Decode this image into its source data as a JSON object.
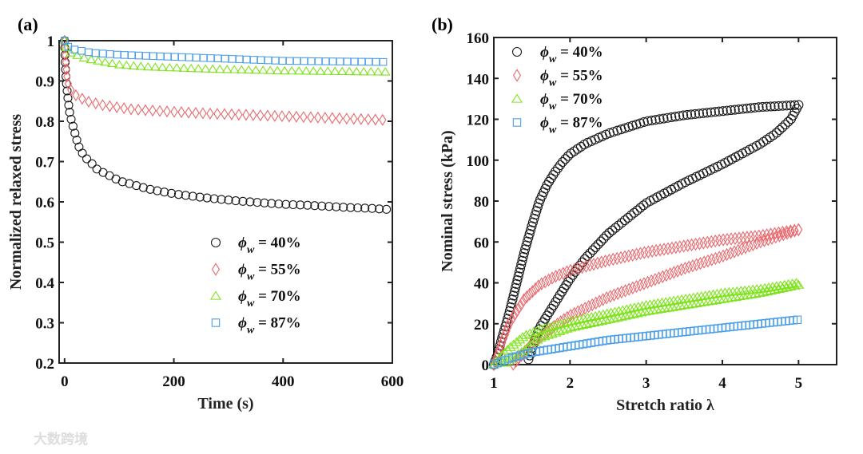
{
  "colors": {
    "40": "#1a1a1a",
    "55": "#e8686d",
    "70": "#7ee31c",
    "87": "#4a9ee8"
  },
  "watermark": "大数跨境",
  "chart_data": [
    {
      "type": "scatter",
      "panel_label": "(a)",
      "title": "",
      "xlabel": "Time (s)",
      "ylabel": "Normalized relaxed stress",
      "xlim": [
        -10,
        600
      ],
      "ylim": [
        0.2,
        1
      ],
      "xticks": [
        0,
        200,
        400,
        600
      ],
      "yticks": [
        0.2,
        0.3,
        0.4,
        0.5,
        0.6,
        0.7,
        0.8,
        0.9,
        1
      ],
      "ytick_labels": [
        "0.2",
        "0.3",
        "0.4",
        "0.5",
        "0.6",
        "0.7",
        "0.8",
        "0.9",
        "1"
      ],
      "legend_position": "lower-center",
      "grid": false,
      "series": [
        {
          "key": "40",
          "symbol": "ϕ",
          "subscript": "w",
          "label": " = 40%",
          "marker": "circle",
          "points": [
            [
              0,
              1.0
            ],
            [
              1,
              0.95
            ],
            [
              2,
              0.92
            ],
            [
              3,
              0.9
            ],
            [
              5,
              0.87
            ],
            [
              8,
              0.835
            ],
            [
              10,
              0.815
            ],
            [
              13,
              0.8
            ],
            [
              18,
              0.775
            ],
            [
              23,
              0.75
            ],
            [
              28,
              0.73
            ],
            [
              38,
              0.71
            ],
            [
              50,
              0.695
            ],
            [
              60,
              0.68
            ],
            [
              75,
              0.67
            ],
            [
              90,
              0.66
            ],
            [
              100,
              0.652
            ],
            [
              120,
              0.645
            ],
            [
              140,
              0.637
            ],
            [
              160,
              0.63
            ],
            [
              200,
              0.62
            ],
            [
              240,
              0.613
            ],
            [
              280,
              0.607
            ],
            [
              320,
              0.602
            ],
            [
              360,
              0.598
            ],
            [
              400,
              0.594
            ],
            [
              440,
              0.592
            ],
            [
              480,
              0.589
            ],
            [
              520,
              0.586
            ],
            [
              560,
              0.584
            ],
            [
              595,
              0.581
            ]
          ]
        },
        {
          "key": "55",
          "symbol": "ϕ",
          "subscript": "w",
          "label": " = 55%",
          "marker": "diamond",
          "points": [
            [
              0,
              1.0
            ],
            [
              2,
              0.95
            ],
            [
              5,
              0.9
            ],
            [
              10,
              0.88
            ],
            [
              20,
              0.865
            ],
            [
              40,
              0.85
            ],
            [
              70,
              0.84
            ],
            [
              120,
              0.83
            ],
            [
              180,
              0.825
            ],
            [
              250,
              0.82
            ],
            [
              350,
              0.815
            ],
            [
              450,
              0.81
            ],
            [
              590,
              0.803
            ]
          ]
        },
        {
          "key": "70",
          "symbol": "ϕ",
          "subscript": "w",
          "label": " = 70%",
          "marker": "triangle",
          "points": [
            [
              0,
              1.0
            ],
            [
              3,
              0.98
            ],
            [
              10,
              0.97
            ],
            [
              40,
              0.955
            ],
            [
              100,
              0.94
            ],
            [
              150,
              0.935
            ],
            [
              250,
              0.93
            ],
            [
              400,
              0.925
            ],
            [
              595,
              0.922
            ]
          ]
        },
        {
          "key": "87",
          "symbol": "ϕ",
          "subscript": "w",
          "label": " = 87%",
          "marker": "square",
          "points": [
            [
              0,
              1.0
            ],
            [
              3,
              0.99
            ],
            [
              10,
              0.98
            ],
            [
              50,
              0.97
            ],
            [
              100,
              0.965
            ],
            [
              200,
              0.96
            ],
            [
              300,
              0.955
            ],
            [
              400,
              0.95
            ],
            [
              595,
              0.947
            ]
          ]
        }
      ]
    },
    {
      "type": "scatter",
      "panel_label": "(b)",
      "title": "",
      "xlabel": "Stretch ratio λ",
      "ylabel": "Nominal stress (kPa)",
      "xlim": [
        1,
        5.5
      ],
      "ylim": [
        0,
        160
      ],
      "xticks": [
        1,
        2,
        3,
        4,
        5
      ],
      "yticks": [
        0,
        20,
        40,
        60,
        80,
        100,
        120,
        140,
        160
      ],
      "legend_position": "top-left",
      "grid": false,
      "series": [
        {
          "key": "40",
          "symbol": "ϕ",
          "subscript": "w",
          "label": " = 40%",
          "marker": "circle",
          "loading": [
            [
              1,
              0
            ],
            [
              1.05,
              5
            ],
            [
              1.1,
              12
            ],
            [
              1.2,
              25
            ],
            [
              1.3,
              40
            ],
            [
              1.4,
              55
            ],
            [
              1.5,
              68
            ],
            [
              1.6,
              80
            ],
            [
              1.7,
              88
            ],
            [
              1.8,
              94
            ],
            [
              1.9,
              99
            ],
            [
              2.0,
              103
            ],
            [
              2.2,
              108
            ],
            [
              2.5,
              113
            ],
            [
              3.0,
              119
            ],
            [
              3.5,
              122
            ],
            [
              4.0,
              124
            ],
            [
              4.5,
              126
            ],
            [
              5.0,
              127
            ]
          ],
          "unloading": [
            [
              5,
              127
            ],
            [
              4.9,
              120
            ],
            [
              4.7,
              113
            ],
            [
              4.5,
              108
            ],
            [
              4.0,
              98
            ],
            [
              3.5,
              89
            ],
            [
              3.0,
              79
            ],
            [
              2.5,
              64
            ],
            [
              2.2,
              52
            ],
            [
              2.0,
              42
            ],
            [
              1.8,
              30
            ],
            [
              1.6,
              18
            ],
            [
              1.5,
              8
            ],
            [
              1.45,
              2
            ]
          ]
        },
        {
          "key": "55",
          "symbol": "ϕ",
          "subscript": "w",
          "label": " = 55%",
          "marker": "diamond",
          "loading": [
            [
              1,
              0
            ],
            [
              1.1,
              10
            ],
            [
              1.2,
              20
            ],
            [
              1.4,
              32
            ],
            [
              1.6,
              39
            ],
            [
              1.8,
              43
            ],
            [
              2.0,
              46
            ],
            [
              2.5,
              51
            ],
            [
              3,
              55
            ],
            [
              3.5,
              58
            ],
            [
              4,
              61
            ],
            [
              4.5,
              63
            ],
            [
              5,
              66
            ]
          ],
          "unloading": [
            [
              5,
              66
            ],
            [
              4.5,
              60
            ],
            [
              4,
              53
            ],
            [
              3.5,
              47
            ],
            [
              3,
              40
            ],
            [
              2.5,
              33
            ],
            [
              2,
              24
            ],
            [
              1.8,
              19
            ],
            [
              1.5,
              10
            ],
            [
              1.3,
              2
            ],
            [
              1.25,
              0
            ]
          ]
        },
        {
          "key": "70",
          "symbol": "ϕ",
          "subscript": "w",
          "label": " = 70%",
          "marker": "triangle",
          "loading": [
            [
              1,
              0
            ],
            [
              1.2,
              8
            ],
            [
              1.4,
              14
            ],
            [
              1.6,
              17
            ],
            [
              2,
              21
            ],
            [
              2.5,
              25
            ],
            [
              3,
              29
            ],
            [
              3.5,
              32
            ],
            [
              4,
              35
            ],
            [
              4.5,
              37
            ],
            [
              5,
              40
            ]
          ],
          "unloading": [
            [
              5,
              39
            ],
            [
              4.5,
              35
            ],
            [
              4,
              32
            ],
            [
              3.5,
              29
            ],
            [
              3,
              26
            ],
            [
              2.5,
              22
            ],
            [
              2,
              18
            ],
            [
              1.6,
              13
            ],
            [
              1.4,
              7
            ],
            [
              1.2,
              2
            ],
            [
              1.1,
              0
            ]
          ]
        },
        {
          "key": "87",
          "symbol": "ϕ",
          "subscript": "w",
          "label": " = 87%",
          "marker": "square",
          "loading": [
            [
              1,
              0
            ],
            [
              1.2,
              3
            ],
            [
              1.5,
              6
            ],
            [
              2,
              9
            ],
            [
              2.5,
              12
            ],
            [
              3,
              14
            ],
            [
              3.5,
              16
            ],
            [
              4,
              18
            ],
            [
              4.5,
              20
            ],
            [
              5,
              22
            ]
          ],
          "unloading": []
        }
      ]
    }
  ]
}
